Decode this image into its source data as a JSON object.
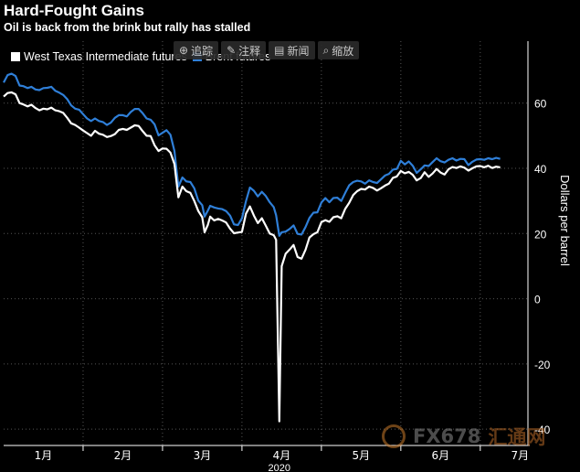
{
  "title": "Hard-Fought Gains",
  "subtitle": "Oil is back from the brink but rally has stalled",
  "toolbar": {
    "items": [
      {
        "label": "追踪",
        "icon": "crosshair-icon"
      },
      {
        "label": "注释",
        "icon": "pencil-icon"
      },
      {
        "label": "新闻",
        "icon": "news-icon"
      },
      {
        "label": "缩放",
        "icon": "magnifier-icon"
      }
    ]
  },
  "watermark": {
    "brand": "FX678",
    "sub": "汇通网"
  },
  "colors": {
    "wti": "#ffffff",
    "brent": "#2f7fd8",
    "background": "#000000",
    "grid": "#555555"
  },
  "chart_data": {
    "type": "line",
    "title": "Hard-Fought Gains",
    "subtitle": "Oil is back from the brink but rally has stalled",
    "ylabel": "Dollars per barrel",
    "ylim": [
      -45,
      79
    ],
    "yticks": [
      -40,
      -20,
      0,
      20,
      40,
      60
    ],
    "xlim": [
      0,
      6.6
    ],
    "x_tick_labels": [
      {
        "label": "1月",
        "pos": 0.5
      },
      {
        "label": "2月",
        "pos": 1.5
      },
      {
        "label": "3月",
        "pos": 2.5
      },
      {
        "label": "4月",
        "pos": 3.5
      },
      {
        "label": "5月",
        "pos": 4.5
      },
      {
        "label": "6月",
        "pos": 5.5
      },
      {
        "label": "7月",
        "pos": 6.5
      }
    ],
    "x_year_label": "2020",
    "grid": true,
    "legend_position": "top-left",
    "series": [
      {
        "name": "West Texas Intermediate futures",
        "color": "#ffffff",
        "points": [
          [
            0.0,
            62.0
          ],
          [
            0.05,
            63.1
          ],
          [
            0.1,
            63.3
          ],
          [
            0.15,
            62.7
          ],
          [
            0.2,
            60.0
          ],
          [
            0.25,
            59.6
          ],
          [
            0.3,
            59.0
          ],
          [
            0.35,
            59.5
          ],
          [
            0.4,
            58.5
          ],
          [
            0.45,
            57.8
          ],
          [
            0.5,
            58.3
          ],
          [
            0.55,
            58.1
          ],
          [
            0.6,
            58.6
          ],
          [
            0.65,
            57.8
          ],
          [
            0.7,
            57.5
          ],
          [
            0.75,
            57.0
          ],
          [
            0.8,
            55.5
          ],
          [
            0.85,
            53.8
          ],
          [
            0.9,
            53.3
          ],
          [
            0.95,
            52.5
          ],
          [
            1.0,
            51.6
          ],
          [
            1.05,
            50.8
          ],
          [
            1.1,
            50.0
          ],
          [
            1.15,
            51.5
          ],
          [
            1.2,
            50.6
          ],
          [
            1.25,
            50.3
          ],
          [
            1.3,
            49.6
          ],
          [
            1.35,
            49.9
          ],
          [
            1.4,
            50.5
          ],
          [
            1.45,
            51.8
          ],
          [
            1.5,
            52.1
          ],
          [
            1.55,
            51.8
          ],
          [
            1.6,
            52.5
          ],
          [
            1.65,
            53.2
          ],
          [
            1.7,
            53.0
          ],
          [
            1.75,
            51.4
          ],
          [
            1.8,
            50.0
          ],
          [
            1.85,
            49.9
          ],
          [
            1.9,
            47.1
          ],
          [
            1.95,
            45.3
          ],
          [
            2.0,
            46.1
          ],
          [
            2.05,
            46.0
          ],
          [
            2.1,
            44.8
          ],
          [
            2.15,
            41.3
          ],
          [
            2.2,
            31.1
          ],
          [
            2.25,
            34.4
          ],
          [
            2.3,
            33.0
          ],
          [
            2.35,
            32.5
          ],
          [
            2.4,
            30.0
          ],
          [
            2.45,
            26.9
          ],
          [
            2.5,
            25.0
          ],
          [
            2.53,
            20.4
          ],
          [
            2.57,
            22.6
          ],
          [
            2.6,
            25.2
          ],
          [
            2.65,
            24.0
          ],
          [
            2.7,
            24.5
          ],
          [
            2.75,
            24.0
          ],
          [
            2.8,
            23.4
          ],
          [
            2.85,
            21.5
          ],
          [
            2.9,
            20.1
          ],
          [
            2.95,
            20.3
          ],
          [
            3.0,
            20.5
          ],
          [
            3.05,
            26.1
          ],
          [
            3.1,
            28.3
          ],
          [
            3.15,
            25.5
          ],
          [
            3.2,
            23.2
          ],
          [
            3.25,
            24.7
          ],
          [
            3.3,
            22.4
          ],
          [
            3.35,
            20.0
          ],
          [
            3.4,
            19.5
          ],
          [
            3.43,
            18.1
          ],
          [
            3.47,
            -37.6
          ],
          [
            3.5,
            10.0
          ],
          [
            3.55,
            13.8
          ],
          [
            3.6,
            15.1
          ],
          [
            3.65,
            16.5
          ],
          [
            3.7,
            12.8
          ],
          [
            3.75,
            12.3
          ],
          [
            3.8,
            15.0
          ],
          [
            3.85,
            18.8
          ],
          [
            3.9,
            19.8
          ],
          [
            3.95,
            20.4
          ],
          [
            4.0,
            23.5
          ],
          [
            4.05,
            24.1
          ],
          [
            4.1,
            23.6
          ],
          [
            4.15,
            25.0
          ],
          [
            4.2,
            25.3
          ],
          [
            4.25,
            24.7
          ],
          [
            4.3,
            27.6
          ],
          [
            4.35,
            29.4
          ],
          [
            4.4,
            31.8
          ],
          [
            4.45,
            33.0
          ],
          [
            4.5,
            33.7
          ],
          [
            4.55,
            33.5
          ],
          [
            4.6,
            34.4
          ],
          [
            4.65,
            34.0
          ],
          [
            4.7,
            33.2
          ],
          [
            4.75,
            33.9
          ],
          [
            4.8,
            34.7
          ],
          [
            4.85,
            35.3
          ],
          [
            4.9,
            37.1
          ],
          [
            4.95,
            37.5
          ],
          [
            5.0,
            39.2
          ],
          [
            5.05,
            38.5
          ],
          [
            5.1,
            38.9
          ],
          [
            5.15,
            38.0
          ],
          [
            5.2,
            36.3
          ],
          [
            5.25,
            37.0
          ],
          [
            5.3,
            38.8
          ],
          [
            5.35,
            37.4
          ],
          [
            5.4,
            38.4
          ],
          [
            5.45,
            39.8
          ],
          [
            5.5,
            38.7
          ],
          [
            5.55,
            38.1
          ],
          [
            5.6,
            39.7
          ],
          [
            5.65,
            40.4
          ],
          [
            5.7,
            40.1
          ],
          [
            5.75,
            40.6
          ],
          [
            5.8,
            40.2
          ],
          [
            5.85,
            39.3
          ],
          [
            5.9,
            40.0
          ],
          [
            5.95,
            40.6
          ],
          [
            6.0,
            40.7
          ],
          [
            6.05,
            40.3
          ],
          [
            6.1,
            40.8
          ],
          [
            6.15,
            40.1
          ],
          [
            6.2,
            40.5
          ],
          [
            6.25,
            40.3
          ]
        ]
      },
      {
        "name": "Brent futures",
        "color": "#2f7fd8",
        "points": [
          [
            0.0,
            66.3
          ],
          [
            0.05,
            68.6
          ],
          [
            0.1,
            69.0
          ],
          [
            0.15,
            68.3
          ],
          [
            0.2,
            65.4
          ],
          [
            0.25,
            65.2
          ],
          [
            0.3,
            64.6
          ],
          [
            0.35,
            65.0
          ],
          [
            0.4,
            64.2
          ],
          [
            0.45,
            64.0
          ],
          [
            0.5,
            64.6
          ],
          [
            0.55,
            64.7
          ],
          [
            0.6,
            65.0
          ],
          [
            0.65,
            63.8
          ],
          [
            0.7,
            63.2
          ],
          [
            0.75,
            62.5
          ],
          [
            0.8,
            61.2
          ],
          [
            0.85,
            59.3
          ],
          [
            0.9,
            58.3
          ],
          [
            0.95,
            58.0
          ],
          [
            1.0,
            56.6
          ],
          [
            1.05,
            55.3
          ],
          [
            1.1,
            54.5
          ],
          [
            1.15,
            55.3
          ],
          [
            1.2,
            54.5
          ],
          [
            1.25,
            54.2
          ],
          [
            1.3,
            53.3
          ],
          [
            1.35,
            54.0
          ],
          [
            1.4,
            55.5
          ],
          [
            1.45,
            56.3
          ],
          [
            1.5,
            56.3
          ],
          [
            1.55,
            55.9
          ],
          [
            1.6,
            57.3
          ],
          [
            1.65,
            58.2
          ],
          [
            1.7,
            58.2
          ],
          [
            1.75,
            56.9
          ],
          [
            1.8,
            55.3
          ],
          [
            1.85,
            54.9
          ],
          [
            1.9,
            53.5
          ],
          [
            1.95,
            50.1
          ],
          [
            2.0,
            50.9
          ],
          [
            2.05,
            51.7
          ],
          [
            2.1,
            50.3
          ],
          [
            2.15,
            45.3
          ],
          [
            2.2,
            34.4
          ],
          [
            2.25,
            37.2
          ],
          [
            2.3,
            36.0
          ],
          [
            2.35,
            35.8
          ],
          [
            2.4,
            33.9
          ],
          [
            2.45,
            30.1
          ],
          [
            2.5,
            28.7
          ],
          [
            2.53,
            25.2
          ],
          [
            2.57,
            27.0
          ],
          [
            2.6,
            28.5
          ],
          [
            2.65,
            28.0
          ],
          [
            2.7,
            27.7
          ],
          [
            2.75,
            27.5
          ],
          [
            2.8,
            26.9
          ],
          [
            2.85,
            25.5
          ],
          [
            2.9,
            22.8
          ],
          [
            2.95,
            22.6
          ],
          [
            3.0,
            24.7
          ],
          [
            3.05,
            29.9
          ],
          [
            3.1,
            34.1
          ],
          [
            3.15,
            33.1
          ],
          [
            3.2,
            31.4
          ],
          [
            3.25,
            32.8
          ],
          [
            3.3,
            31.5
          ],
          [
            3.35,
            29.6
          ],
          [
            3.4,
            28.1
          ],
          [
            3.43,
            25.6
          ],
          [
            3.47,
            19.3
          ],
          [
            3.5,
            20.4
          ],
          [
            3.55,
            20.6
          ],
          [
            3.6,
            21.4
          ],
          [
            3.65,
            22.5
          ],
          [
            3.7,
            19.9
          ],
          [
            3.75,
            19.7
          ],
          [
            3.8,
            22.0
          ],
          [
            3.85,
            24.8
          ],
          [
            3.9,
            26.4
          ],
          [
            3.95,
            26.5
          ],
          [
            4.0,
            29.5
          ],
          [
            4.05,
            30.9
          ],
          [
            4.1,
            29.6
          ],
          [
            4.15,
            30.9
          ],
          [
            4.2,
            31.0
          ],
          [
            4.25,
            30.0
          ],
          [
            4.3,
            32.5
          ],
          [
            4.35,
            34.8
          ],
          [
            4.4,
            35.8
          ],
          [
            4.45,
            36.2
          ],
          [
            4.5,
            36.0
          ],
          [
            4.55,
            35.3
          ],
          [
            4.6,
            36.3
          ],
          [
            4.65,
            35.8
          ],
          [
            4.7,
            35.5
          ],
          [
            4.75,
            36.6
          ],
          [
            4.8,
            37.8
          ],
          [
            4.85,
            38.3
          ],
          [
            4.9,
            39.6
          ],
          [
            4.95,
            39.8
          ],
          [
            5.0,
            42.3
          ],
          [
            5.05,
            41.2
          ],
          [
            5.1,
            42.1
          ],
          [
            5.15,
            40.8
          ],
          [
            5.2,
            38.6
          ],
          [
            5.25,
            39.7
          ],
          [
            5.3,
            40.9
          ],
          [
            5.35,
            40.7
          ],
          [
            5.4,
            41.9
          ],
          [
            5.45,
            43.1
          ],
          [
            5.5,
            42.2
          ],
          [
            5.55,
            41.8
          ],
          [
            5.6,
            42.6
          ],
          [
            5.65,
            43.1
          ],
          [
            5.7,
            42.4
          ],
          [
            5.75,
            42.9
          ],
          [
            5.8,
            42.8
          ],
          [
            5.85,
            41.0
          ],
          [
            5.9,
            42.0
          ],
          [
            5.95,
            42.7
          ],
          [
            6.0,
            42.8
          ],
          [
            6.05,
            42.6
          ],
          [
            6.1,
            43.1
          ],
          [
            6.15,
            42.8
          ],
          [
            6.2,
            43.2
          ],
          [
            6.25,
            42.9
          ]
        ]
      }
    ]
  }
}
